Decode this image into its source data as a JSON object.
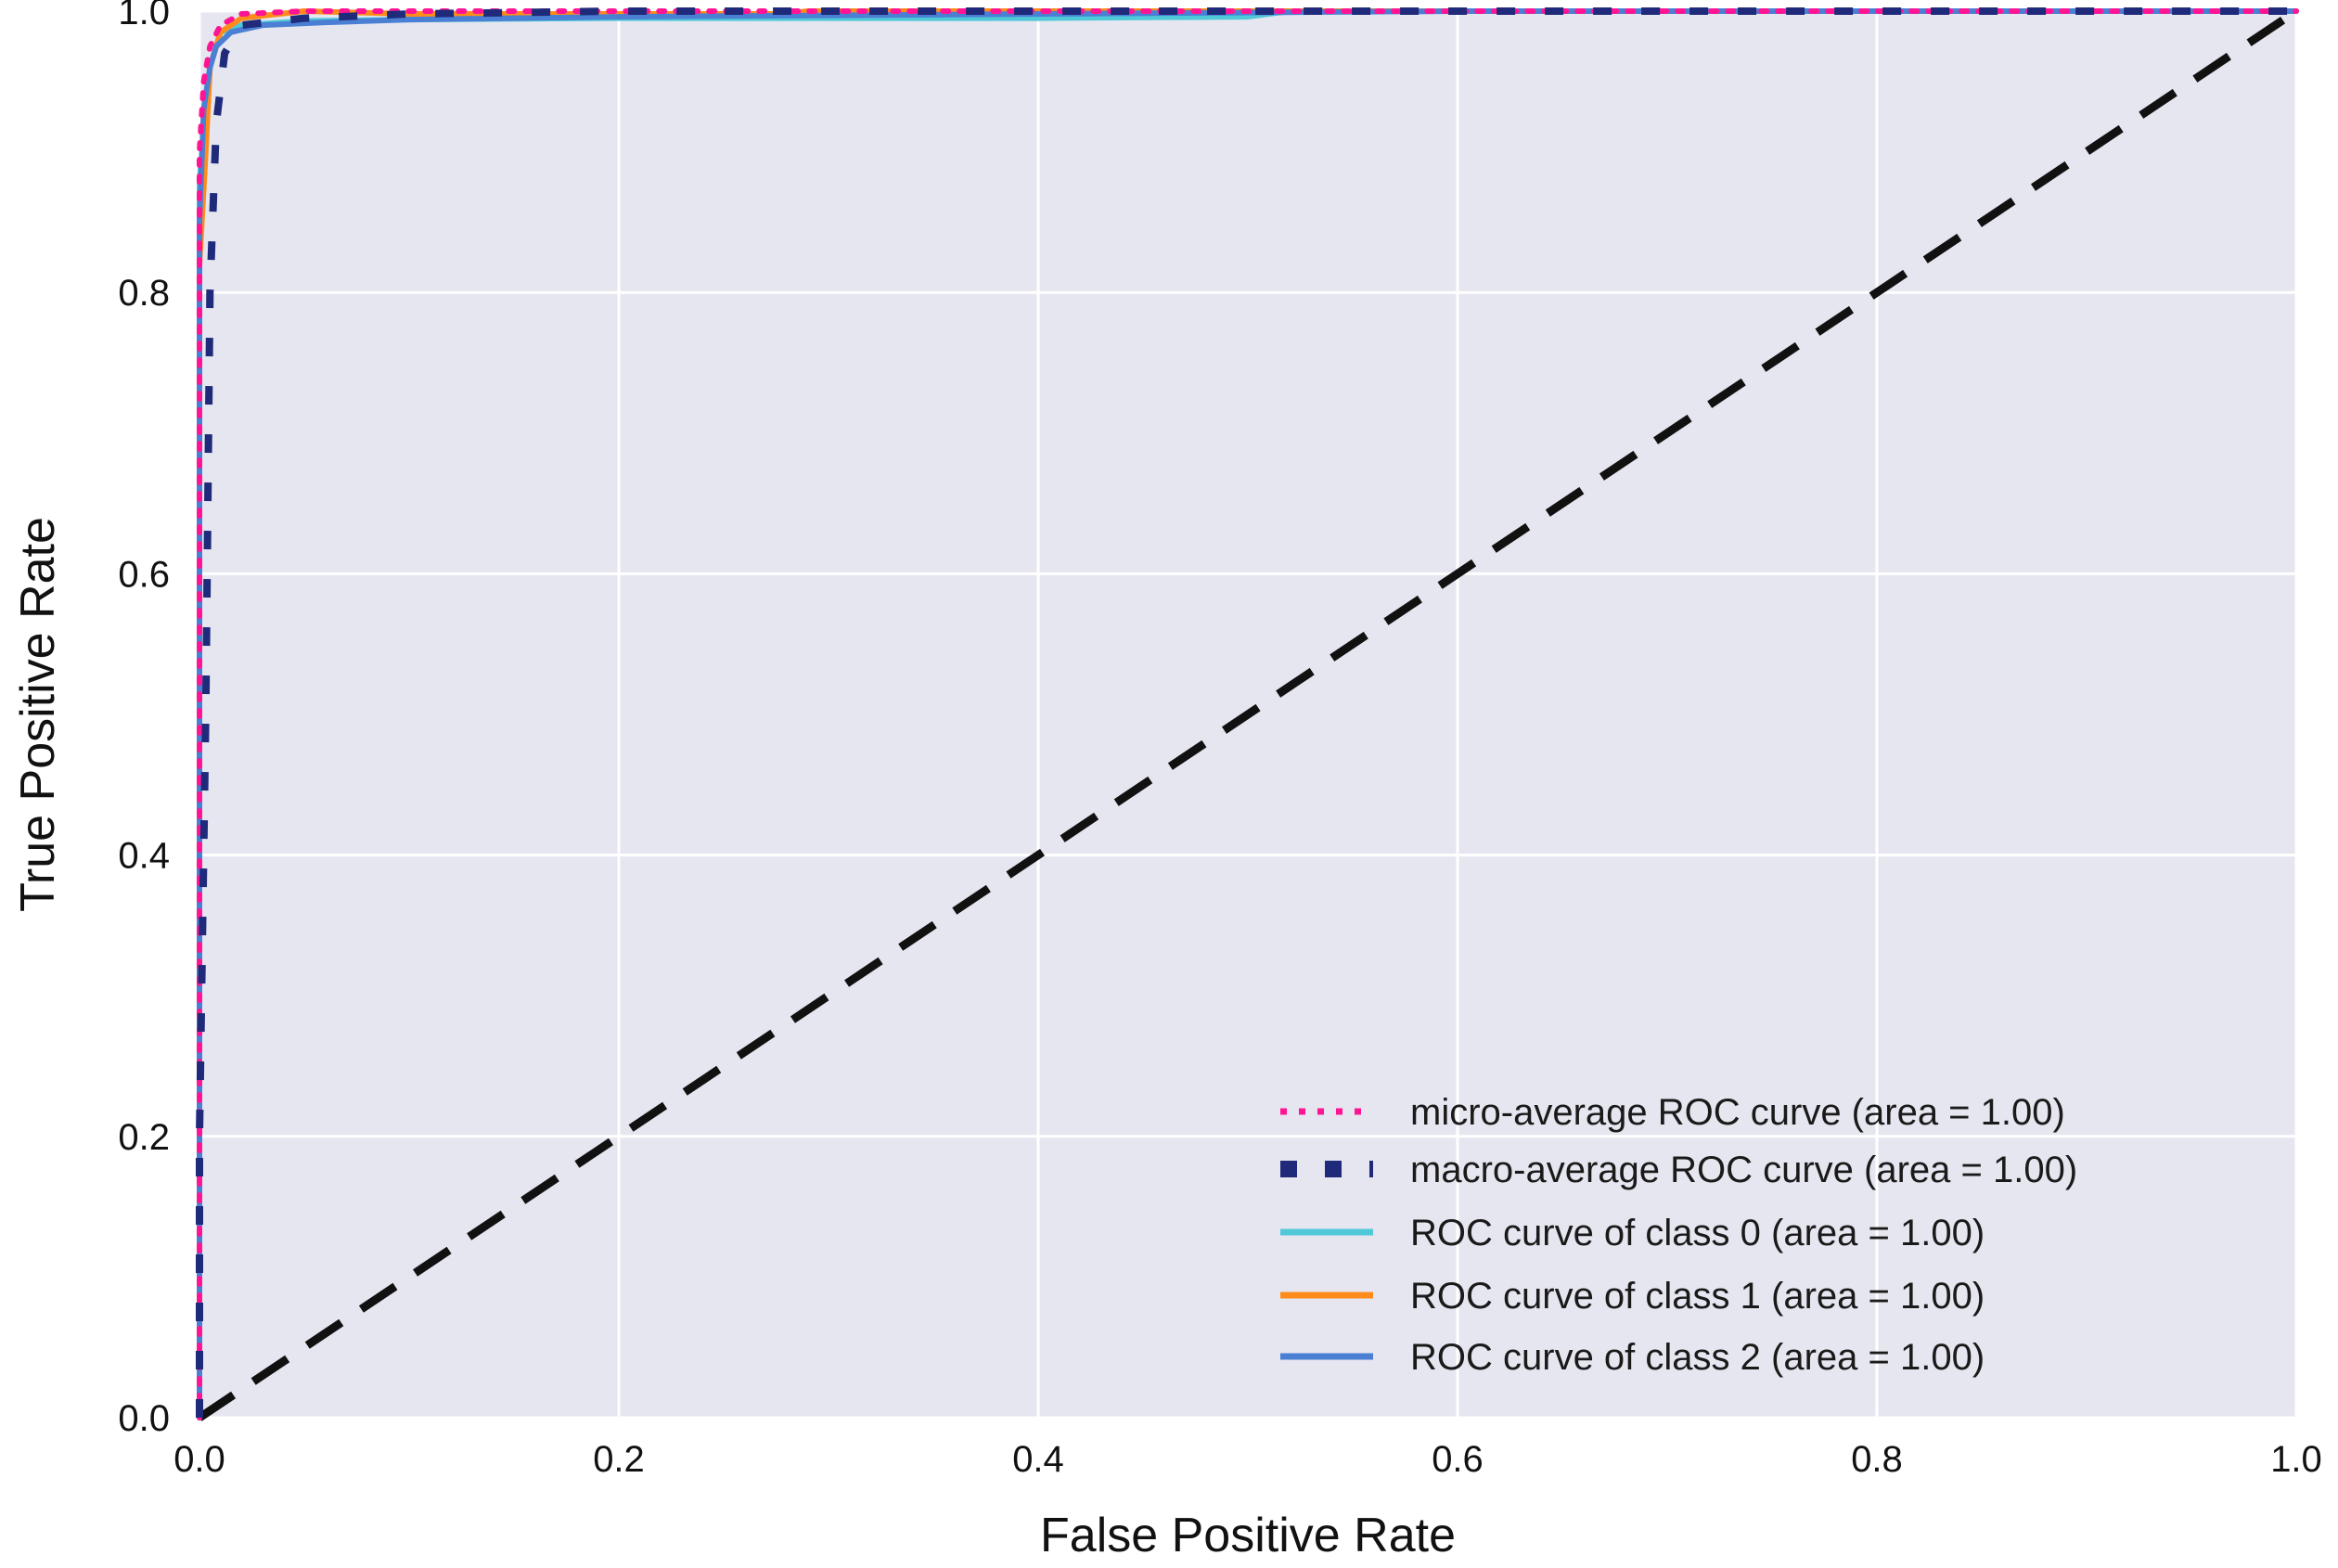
{
  "chart_data": {
    "type": "line",
    "title": "",
    "xlabel": "False Positive Rate",
    "ylabel": "True Positive Rate",
    "xlim": [
      0.0,
      1.0
    ],
    "ylim": [
      0.0,
      1.0
    ],
    "x_ticks": [
      "0.0",
      "0.2",
      "0.4",
      "0.6",
      "0.8",
      "1.0"
    ],
    "y_ticks": [
      "0.0",
      "0.2",
      "0.4",
      "0.6",
      "0.8",
      "1.0"
    ],
    "grid": true,
    "legend_position": "lower-right",
    "background_color": "#e6e6f0",
    "series": [
      {
        "name": "micro-average ROC curve (area = 1.00)",
        "color": "#ff1493",
        "style": "dotted",
        "x": [
          0.0,
          0.0,
          0.002,
          0.005,
          0.01,
          0.02,
          0.05,
          0.1,
          0.2,
          0.3,
          0.5,
          0.7,
          1.0
        ],
        "y": [
          0.0,
          0.9,
          0.95,
          0.975,
          0.99,
          0.998,
          1.0,
          1.0,
          1.0,
          1.0,
          1.0,
          1.0,
          1.0
        ]
      },
      {
        "name": "macro-average ROC curve (area = 1.00)",
        "color": "#1f2a7a",
        "style": "dashed",
        "x": [
          0.0,
          0.0,
          0.003,
          0.005,
          0.008,
          0.012,
          0.02,
          0.05,
          0.1,
          0.2,
          0.3,
          0.5,
          0.7,
          1.0
        ],
        "y": [
          0.0,
          0.2,
          0.5,
          0.8,
          0.92,
          0.97,
          0.99,
          0.995,
          0.998,
          1.0,
          1.0,
          1.0,
          1.0,
          1.0
        ]
      },
      {
        "name": "ROC curve of class 0 (area = 1.00)",
        "color": "#4fc8d8",
        "style": "solid",
        "x": [
          0.0,
          0.0,
          0.005,
          0.01,
          0.02,
          0.05,
          0.1,
          0.2,
          0.3,
          0.4,
          0.5,
          0.52,
          0.6,
          1.0
        ],
        "y": [
          0.0,
          0.88,
          0.96,
          0.985,
          0.99,
          0.993,
          0.994,
          0.995,
          0.995,
          0.995,
          0.996,
          1.0,
          1.0,
          1.0
        ]
      },
      {
        "name": "ROC curve of class 1 (area = 1.00)",
        "color": "#ff8c1a",
        "style": "solid",
        "x": [
          0.0,
          0.0,
          0.003,
          0.005,
          0.01,
          0.02,
          0.05,
          0.1,
          0.2,
          0.28,
          0.29,
          0.5,
          1.0
        ],
        "y": [
          0.0,
          0.82,
          0.9,
          0.96,
          0.985,
          0.995,
          1.0,
          0.998,
          0.998,
          0.998,
          1.0,
          1.0,
          1.0
        ]
      },
      {
        "name": "ROC curve of class 2 (area = 1.00)",
        "color": "#4a7fd4",
        "style": "solid",
        "x": [
          0.0,
          0.0,
          0.002,
          0.005,
          0.008,
          0.015,
          0.03,
          0.06,
          0.1,
          0.2,
          0.4,
          0.6,
          1.0
        ],
        "y": [
          0.0,
          0.85,
          0.93,
          0.96,
          0.975,
          0.985,
          0.99,
          0.992,
          0.994,
          0.996,
          0.998,
          1.0,
          1.0
        ]
      }
    ],
    "reference_line": {
      "x": [
        0.0,
        1.0
      ],
      "y": [
        0.0,
        1.0
      ],
      "color": "#111111",
      "style": "dashed"
    }
  }
}
